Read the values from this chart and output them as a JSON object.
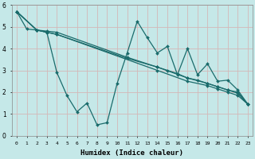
{
  "xlabel": "Humidex (Indice chaleur)",
  "background_color": "#c5e8e8",
  "grid_color": "#d4b8b8",
  "line_color": "#1a6b6b",
  "xlim": [
    -0.5,
    23.5
  ],
  "ylim": [
    0,
    6
  ],
  "xticks": [
    0,
    1,
    2,
    3,
    4,
    5,
    6,
    7,
    8,
    9,
    10,
    11,
    12,
    13,
    14,
    15,
    16,
    17,
    18,
    19,
    20,
    21,
    22,
    23
  ],
  "yticks": [
    0,
    1,
    2,
    3,
    4,
    5,
    6
  ],
  "series": [
    {
      "x": [
        0,
        1,
        2,
        3,
        4,
        11,
        14,
        17,
        19,
        20,
        21,
        22,
        23
      ],
      "y": [
        5.7,
        4.9,
        4.85,
        4.8,
        4.75,
        3.6,
        3.15,
        2.65,
        2.4,
        2.25,
        2.1,
        2.0,
        1.45
      ]
    },
    {
      "x": [
        0,
        2,
        3,
        4,
        14,
        17,
        19,
        20,
        21,
        22,
        23
      ],
      "y": [
        5.7,
        4.85,
        4.75,
        4.65,
        3.0,
        2.5,
        2.3,
        2.15,
        2.0,
        1.85,
        1.45
      ]
    },
    {
      "x": [
        0,
        2,
        3,
        4,
        5,
        6,
        7,
        8,
        9,
        10,
        11,
        12,
        13,
        14,
        15,
        16,
        17,
        18,
        19,
        20,
        21,
        22,
        23
      ],
      "y": [
        5.7,
        4.85,
        4.75,
        2.9,
        1.85,
        1.1,
        1.5,
        0.5,
        0.6,
        2.4,
        3.8,
        5.25,
        4.5,
        3.8,
        4.1,
        2.8,
        4.0,
        2.8,
        3.3,
        2.5,
        2.55,
        2.1,
        1.45
      ]
    },
    {
      "x": [
        0,
        2,
        3,
        4,
        11,
        14,
        15,
        16,
        17,
        18,
        19,
        20,
        21,
        22,
        23
      ],
      "y": [
        5.7,
        4.85,
        4.75,
        4.65,
        3.55,
        3.15,
        3.0,
        2.85,
        2.65,
        2.55,
        2.4,
        2.25,
        2.1,
        1.95,
        1.45
      ]
    }
  ]
}
